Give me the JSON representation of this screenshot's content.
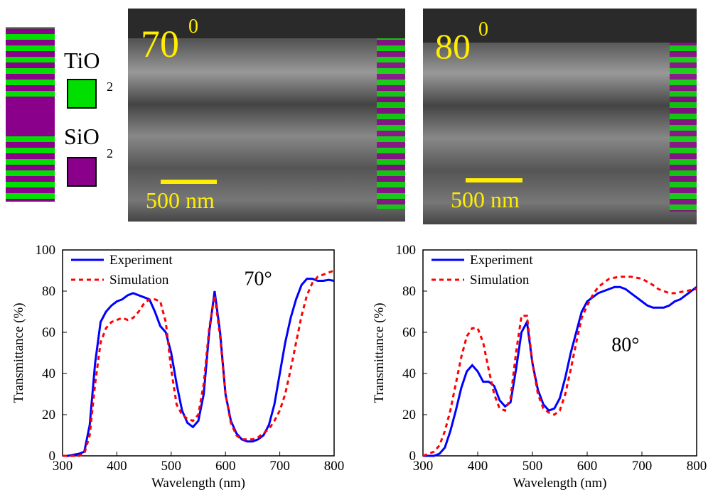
{
  "stack_legend": {
    "items": [
      {
        "label": "TiO",
        "subscript": "2"
      },
      {
        "label": "SiO",
        "subscript": "2"
      }
    ]
  },
  "images": [
    {
      "angle": "70",
      "superscript": "0",
      "scale_bar": "500 nm"
    },
    {
      "angle": "80",
      "superscript": "0",
      "scale_bar": "500 nm"
    }
  ],
  "chart_data": [
    {
      "type": "line",
      "xlabel": "Wavelength (nm)",
      "ylabel": "Transmittance (%)",
      "annotation": "70°",
      "xlim": [
        300,
        800
      ],
      "ylim": [
        0,
        100
      ],
      "xticks": [
        300,
        400,
        500,
        600,
        700,
        800
      ],
      "yticks": [
        0,
        20,
        40,
        60,
        80,
        100
      ],
      "legend": "upper-left",
      "x": [
        300,
        310,
        320,
        330,
        340,
        350,
        360,
        370,
        380,
        390,
        400,
        410,
        420,
        430,
        440,
        450,
        460,
        470,
        480,
        490,
        500,
        510,
        520,
        530,
        540,
        550,
        560,
        570,
        580,
        590,
        600,
        610,
        620,
        630,
        640,
        650,
        660,
        670,
        680,
        690,
        700,
        710,
        720,
        730,
        740,
        750,
        760,
        770,
        780,
        790,
        800
      ],
      "series": [
        {
          "name": "Experiment",
          "color": "#0000ff",
          "dash": "solid",
          "values": [
            0,
            0,
            0.5,
            1,
            2,
            15,
            45,
            65,
            70,
            73,
            75,
            76,
            78,
            79,
            78,
            77,
            76,
            70,
            63,
            60,
            50,
            35,
            22,
            16,
            14,
            17,
            30,
            60,
            80,
            60,
            30,
            17,
            11,
            8,
            7,
            7,
            8,
            10,
            15,
            25,
            40,
            55,
            67,
            76,
            83,
            86,
            86,
            85,
            85,
            85.5,
            85
          ]
        },
        {
          "name": "Simulation",
          "color": "#ff0000",
          "dash": "dotted",
          "values": [
            0,
            0,
            0,
            0,
            1,
            10,
            35,
            55,
            62,
            65,
            66,
            67,
            66,
            67,
            70,
            74,
            76,
            76,
            75,
            65,
            42,
            25,
            20,
            18,
            17,
            20,
            35,
            62,
            78,
            58,
            30,
            16,
            10,
            8,
            8,
            8,
            9,
            11,
            13,
            17,
            22,
            30,
            42,
            55,
            68,
            78,
            84,
            87,
            88,
            89,
            90
          ]
        }
      ]
    },
    {
      "type": "line",
      "xlabel": "Wavelength (nm)",
      "ylabel": "Transmittance (%)",
      "annotation": "80°",
      "xlim": [
        300,
        800
      ],
      "ylim": [
        0,
        100
      ],
      "xticks": [
        300,
        400,
        500,
        600,
        700,
        800
      ],
      "yticks": [
        0,
        20,
        40,
        60,
        80,
        100
      ],
      "legend": "upper-left",
      "x": [
        300,
        310,
        320,
        330,
        340,
        350,
        360,
        370,
        380,
        390,
        400,
        410,
        420,
        430,
        440,
        450,
        460,
        470,
        480,
        490,
        500,
        510,
        520,
        530,
        540,
        550,
        560,
        570,
        580,
        590,
        600,
        610,
        620,
        630,
        640,
        650,
        660,
        670,
        680,
        690,
        700,
        710,
        720,
        730,
        740,
        750,
        760,
        770,
        780,
        790,
        800
      ],
      "series": [
        {
          "name": "Experiment",
          "color": "#0000ff",
          "dash": "solid",
          "values": [
            0,
            0,
            0,
            1,
            4,
            12,
            22,
            33,
            41,
            44,
            41,
            36,
            36,
            34,
            27,
            24,
            26,
            42,
            60,
            65,
            45,
            32,
            25,
            22,
            23,
            28,
            38,
            50,
            60,
            70,
            75,
            77,
            79,
            80,
            81,
            82,
            82,
            81,
            79,
            77,
            75,
            73,
            72,
            72,
            72,
            73,
            75,
            76,
            78,
            80,
            82
          ]
        },
        {
          "name": "Simulation",
          "color": "#ff0000",
          "dash": "dotted",
          "values": [
            0,
            1,
            2,
            5,
            12,
            22,
            35,
            48,
            58,
            62,
            62,
            55,
            42,
            30,
            23,
            22,
            28,
            50,
            68,
            68,
            45,
            30,
            23,
            21,
            20,
            22,
            30,
            42,
            55,
            67,
            73,
            78,
            82,
            84,
            86,
            86.5,
            87,
            87,
            87,
            86.5,
            86,
            84.5,
            83,
            81,
            80,
            79,
            79,
            79.5,
            80,
            80.5,
            81
          ]
        }
      ]
    }
  ]
}
